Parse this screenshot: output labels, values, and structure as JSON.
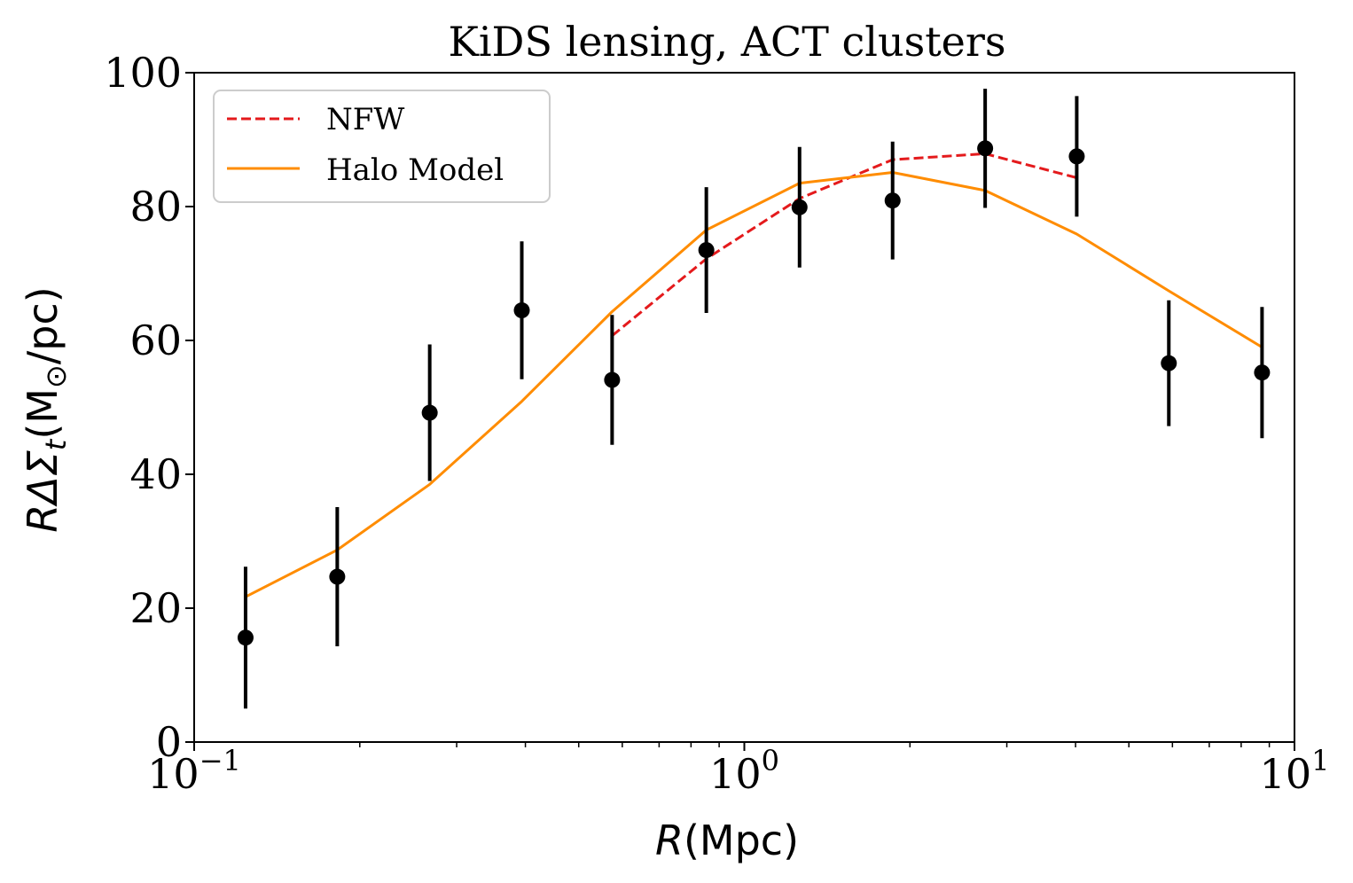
{
  "chart_data": {
    "type": "scatter",
    "title": "KiDS lensing, ACT clusters",
    "xlabel_var": "R",
    "xlabel_unit": "(Mpc)",
    "ylabel_prefix": "RΔΣ",
    "ylabel_sub": "t",
    "ylabel_unit_pre": "(M",
    "ylabel_unit_sub": "⊙",
    "ylabel_unit_post": "/pc)",
    "x_scale": "log",
    "xlim": [
      0.1,
      10
    ],
    "ylim": [
      0,
      100
    ],
    "x_ticks": [
      {
        "value": 0.1,
        "base": "10",
        "exp": "−1"
      },
      {
        "value": 1,
        "base": "10",
        "exp": "0"
      },
      {
        "value": 10,
        "base": "10",
        "exp": "1"
      }
    ],
    "y_ticks": [
      0,
      20,
      40,
      60,
      80,
      100
    ],
    "grid": false,
    "legend_position": "top-left",
    "series": [
      {
        "name": "NFW",
        "kind": "line",
        "style": "dashed",
        "color": "#e41a1c",
        "x": [
          0.575,
          0.853,
          1.26,
          1.86,
          2.74,
          4.02
        ],
        "y": [
          60.7,
          72.2,
          81.2,
          87.0,
          87.9,
          84.3
        ]
      },
      {
        "name": "Halo Model",
        "kind": "line",
        "style": "solid",
        "color": "#ff8c00",
        "x": [
          0.124,
          0.182,
          0.268,
          0.394,
          0.575,
          0.853,
          1.26,
          1.86,
          2.74,
          4.02,
          5.91,
          8.73
        ],
        "y": [
          21.7,
          28.7,
          38.5,
          50.9,
          64.3,
          76.5,
          83.5,
          85.1,
          82.4,
          75.9,
          67.4,
          59.0
        ]
      },
      {
        "kind": "errorbar",
        "color": "#000000",
        "x": [
          0.124,
          0.182,
          0.268,
          0.394,
          0.575,
          0.853,
          1.26,
          1.86,
          2.74,
          4.02,
          5.91,
          8.73
        ],
        "y": [
          15.6,
          24.7,
          49.2,
          64.5,
          54.1,
          73.5,
          79.9,
          80.9,
          88.7,
          87.5,
          56.6,
          55.2
        ],
        "yerr": [
          10.6,
          10.4,
          10.2,
          10.3,
          9.7,
          9.4,
          9.0,
          8.8,
          8.9,
          9.0,
          9.4,
          9.8
        ]
      }
    ]
  }
}
